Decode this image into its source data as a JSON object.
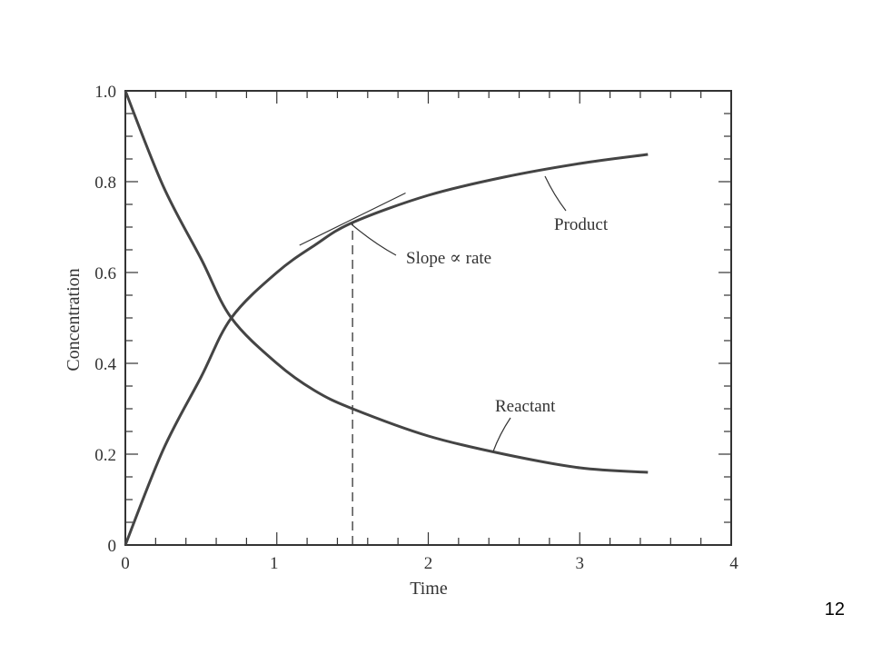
{
  "slide": {
    "number": "12"
  },
  "chart_data": {
    "type": "line",
    "xlabel": "Time",
    "ylabel": "Concentration",
    "xlim": [
      0,
      4
    ],
    "ylim": [
      0,
      1.0
    ],
    "x_ticks": [
      0,
      1,
      2,
      3,
      4
    ],
    "x_tick_labels": [
      "0",
      "1",
      "2",
      "3",
      "4"
    ],
    "y_ticks": [
      0,
      0.2,
      0.4,
      0.6,
      0.8,
      1.0
    ],
    "y_tick_labels": [
      "0",
      "0.2",
      "0.4",
      "0.6",
      "0.8",
      "1.0"
    ],
    "grid": false,
    "series": [
      {
        "name": "Reactant",
        "x": [
          0,
          0.25,
          0.5,
          0.7,
          1.0,
          1.25,
          1.5,
          2.0,
          2.5,
          3.0,
          3.45
        ],
        "y": [
          1.0,
          0.79,
          0.63,
          0.5,
          0.4,
          0.34,
          0.3,
          0.24,
          0.2,
          0.17,
          0.16
        ]
      },
      {
        "name": "Product",
        "x": [
          0,
          0.25,
          0.5,
          0.7,
          1.0,
          1.25,
          1.5,
          2.0,
          2.5,
          3.0,
          3.45
        ],
        "y": [
          0.0,
          0.21,
          0.37,
          0.5,
          0.6,
          0.66,
          0.71,
          0.77,
          0.81,
          0.84,
          0.86
        ]
      }
    ],
    "annotations": [
      {
        "text": "Slope ∝ rate",
        "x": 1.5,
        "y": 0.71
      }
    ],
    "tangent": {
      "x": [
        1.15,
        1.85
      ],
      "y": [
        0.66,
        0.775
      ]
    },
    "dashed_line": {
      "x": 1.5,
      "y": [
        0,
        0.71
      ]
    }
  }
}
